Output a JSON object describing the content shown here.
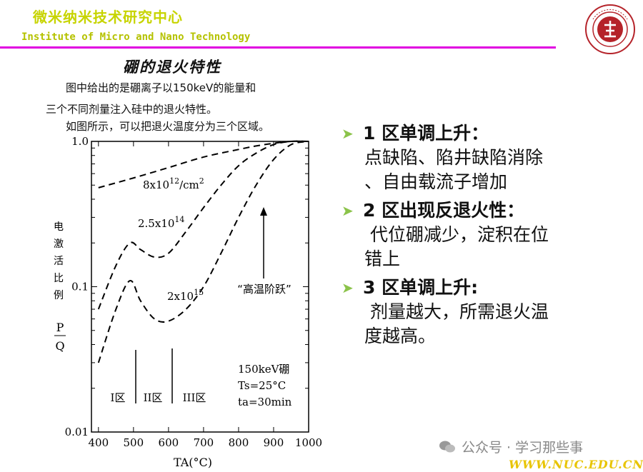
{
  "header": {
    "title_cn": "微米纳米技术研究中心",
    "title_en": "Institute of Micro and Nano Technology"
  },
  "figure": {
    "title": "硼的退火特性",
    "caption_lines": [
      "图中给出的是硼离子以150keV的能量和",
      "三个不同剂量注入硅中的退火特性。",
      "如图所示，可以把退火温度分为三个区域。"
    ],
    "ylabel_chars": [
      "电",
      "激",
      "活",
      "比",
      "例"
    ],
    "ylabel_fraction": [
      "P",
      "Q"
    ],
    "xlabel": "TA(°C)",
    "y_ticks": [
      "1.0",
      "0.1",
      "0.01"
    ],
    "x_ticks": [
      "400",
      "500",
      "600",
      "700",
      "800",
      "900",
      "1000"
    ],
    "curve_labels": {
      "c1_base": "8x10",
      "c1_exp": "12",
      "c1_unit": "/cm",
      "c1_unit_exp": "2",
      "c2_base": "2.5x10",
      "c2_exp": "14",
      "c3_base": "2x10",
      "c3_exp": "15"
    },
    "annotation": "“高温阶跃”",
    "regions": [
      "I区",
      "II区",
      "III区"
    ],
    "conditions": [
      "150keV硼",
      "Ts=25°C",
      "ta=30min"
    ]
  },
  "chart_data": {
    "type": "line",
    "title": "硼的退火特性",
    "xlabel": "TA(°C)",
    "ylabel": "电激活比例 P/Q",
    "ylim": [
      0.01,
      1.0
    ],
    "y_scale": "log",
    "xlim": [
      380,
      1000
    ],
    "series": [
      {
        "name": "8x10^12/cm^2",
        "x": [
          400,
          500,
          600,
          700,
          800,
          850,
          900,
          950,
          1000
        ],
        "y": [
          0.48,
          0.56,
          0.66,
          0.78,
          0.88,
          0.93,
          0.97,
          1.0,
          1.0
        ]
      },
      {
        "name": "2.5x10^14",
        "x": [
          400,
          450,
          490,
          520,
          560,
          600,
          650,
          700,
          750,
          800,
          850,
          900,
          950,
          1000
        ],
        "y": [
          0.07,
          0.14,
          0.2,
          0.18,
          0.16,
          0.17,
          0.24,
          0.35,
          0.5,
          0.68,
          0.83,
          0.95,
          1.0,
          1.0
        ]
      },
      {
        "name": "2x10^15",
        "x": [
          400,
          450,
          490,
          520,
          560,
          600,
          650,
          700,
          750,
          800,
          850,
          900,
          950,
          1000
        ],
        "y": [
          0.03,
          0.07,
          0.11,
          0.08,
          0.06,
          0.058,
          0.07,
          0.1,
          0.17,
          0.3,
          0.5,
          0.75,
          0.95,
          1.0
        ]
      }
    ]
  },
  "bullets": [
    {
      "head": "1 区单调上升：",
      "lines": [
        "点缺陷、陷井缺陷消除",
        "、自由载流子增加"
      ]
    },
    {
      "head": "2 区出现反退火性：",
      "lines": [
        " 代位硼减少，淀积在位",
        "错上"
      ]
    },
    {
      "head": "3 区单调上升:",
      "lines": [
        " 剂量越大，所需退火温",
        "度越高。"
      ]
    }
  ],
  "watermark": {
    "text": "公众号 · 学习那些事",
    "icon": "wechat-icon"
  },
  "footer": {
    "site": "WWW.NUC.EDU.CN"
  },
  "colors": {
    "header_text": "#c7d400",
    "divider": "#e000e0",
    "bullet_arrow": "#8bc34a",
    "logo": "#b5232a",
    "site": "#e8c400"
  }
}
